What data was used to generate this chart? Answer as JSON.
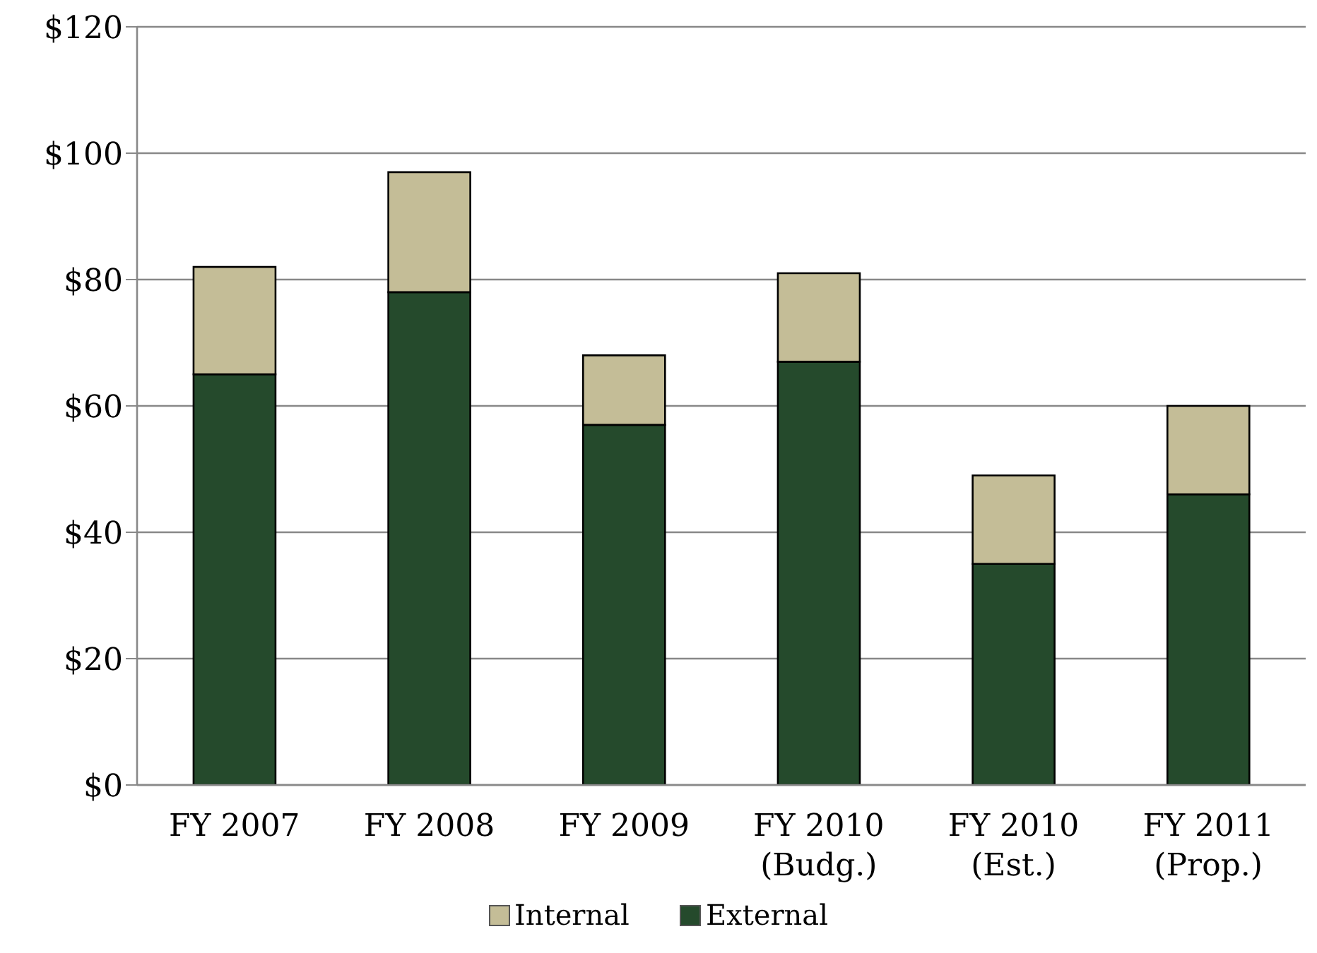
{
  "chart_data": {
    "type": "bar",
    "stacked": true,
    "categories": [
      "FY 2007",
      "FY 2008",
      "FY 2009",
      "FY 2010\n(Budg.)",
      "FY 2010\n(Est.)",
      "FY 2011\n(Prop.)"
    ],
    "series": [
      {
        "name": "External",
        "color": "#254a2c",
        "values": [
          65,
          78,
          57,
          67,
          35,
          46
        ]
      },
      {
        "name": "Internal",
        "color": "#c4bd97",
        "values": [
          17,
          19,
          11,
          14,
          14,
          14
        ]
      }
    ],
    "ylim": [
      0,
      120
    ],
    "yticks": [
      {
        "value": 0,
        "label": "$0"
      },
      {
        "value": 20,
        "label": "$20"
      },
      {
        "value": 40,
        "label": "$40"
      },
      {
        "value": 60,
        "label": "$60"
      },
      {
        "value": 80,
        "label": "$80"
      },
      {
        "value": 100,
        "label": "$100"
      },
      {
        "value": 120,
        "label": "$120"
      }
    ],
    "grid": "y",
    "legend": "bottom"
  }
}
